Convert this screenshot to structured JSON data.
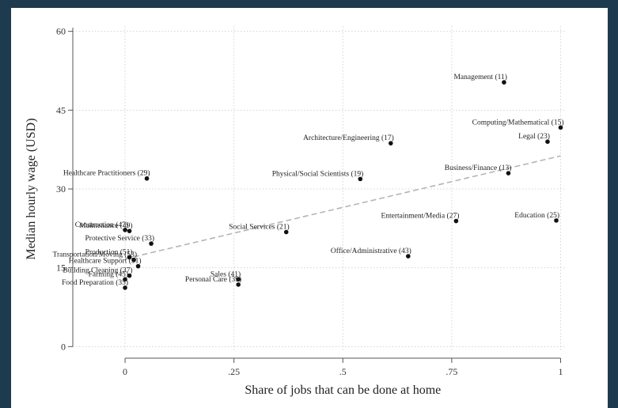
{
  "chart_data": {
    "type": "scatter",
    "xlabel": "Share of jobs that can be done at home",
    "ylabel": "Median hourly wage (USD)",
    "xlim": [
      -0.12,
      1.01
    ],
    "ylim": [
      -1,
      61
    ],
    "x_ticks": [
      0,
      0.25,
      0.5,
      0.75,
      1
    ],
    "x_tick_labels": [
      "0",
      ".25",
      ".5",
      ".75",
      "1"
    ],
    "y_ticks": [
      0,
      15,
      30,
      45,
      60
    ],
    "y_tick_labels": [
      "0",
      "15",
      "30",
      "45",
      "60"
    ],
    "grid": true,
    "points": [
      {
        "label": "Management (11)",
        "x": 0.87,
        "y": 50.3,
        "anchor": "end"
      },
      {
        "label": "Computing/Mathematical (15)",
        "x": 1.0,
        "y": 41.7,
        "anchor": "end"
      },
      {
        "label": "Legal (23)",
        "x": 0.97,
        "y": 39.0,
        "anchor": "start"
      },
      {
        "label": "Architecture/Engineering (17)",
        "x": 0.61,
        "y": 38.7,
        "anchor": "end"
      },
      {
        "label": "Business/Finance (13)",
        "x": 0.88,
        "y": 33.0,
        "anchor": "end"
      },
      {
        "label": "Physical/Social Scientists (19)",
        "x": 0.54,
        "y": 31.9,
        "anchor": "end"
      },
      {
        "label": "Healthcare Practitioners (29)",
        "x": 0.05,
        "y": 32.0,
        "anchor": "end"
      },
      {
        "label": "Entertainment/Media (27)",
        "x": 0.76,
        "y": 23.9,
        "anchor": "end"
      },
      {
        "label": "Education (25)",
        "x": 0.99,
        "y": 24.0,
        "anchor": "end"
      },
      {
        "label": "Social Services (21)",
        "x": 0.37,
        "y": 21.8,
        "anchor": "end"
      },
      {
        "label": "Office/Administrative (43)",
        "x": 0.65,
        "y": 17.2,
        "anchor": "end"
      },
      {
        "label": "Construction (47)",
        "x": 0.0,
        "y": 22.2,
        "anchor": "end"
      },
      {
        "label": "Maintenance (49)",
        "x": 0.01,
        "y": 22.0,
        "anchor": "end"
      },
      {
        "label": "Protective Service (33)",
        "x": 0.06,
        "y": 19.6,
        "anchor": "end"
      },
      {
        "label": "Production (51)",
        "x": 0.01,
        "y": 17.0,
        "anchor": "end"
      },
      {
        "label": "Transportation/Moving (53)",
        "x": 0.02,
        "y": 16.5,
        "anchor": "end"
      },
      {
        "label": "Healthcare Support (31)",
        "x": 0.03,
        "y": 15.3,
        "anchor": "end"
      },
      {
        "label": "Building Cleaning (37)",
        "x": 0.01,
        "y": 13.5,
        "anchor": "end"
      },
      {
        "label": "Farming (45)",
        "x": 0.0,
        "y": 12.8,
        "anchor": "end"
      },
      {
        "label": "Food Preparation (35)",
        "x": 0.0,
        "y": 11.2,
        "anchor": "end"
      },
      {
        "label": "Sales (41)",
        "x": 0.26,
        "y": 12.8,
        "anchor": "start"
      },
      {
        "label": "Personal Care (39)",
        "x": 0.26,
        "y": 11.8,
        "anchor": "end"
      }
    ],
    "fit_line": {
      "x": [
        0,
        1
      ],
      "y": [
        16.7,
        36.3
      ],
      "style": "dashed"
    }
  }
}
